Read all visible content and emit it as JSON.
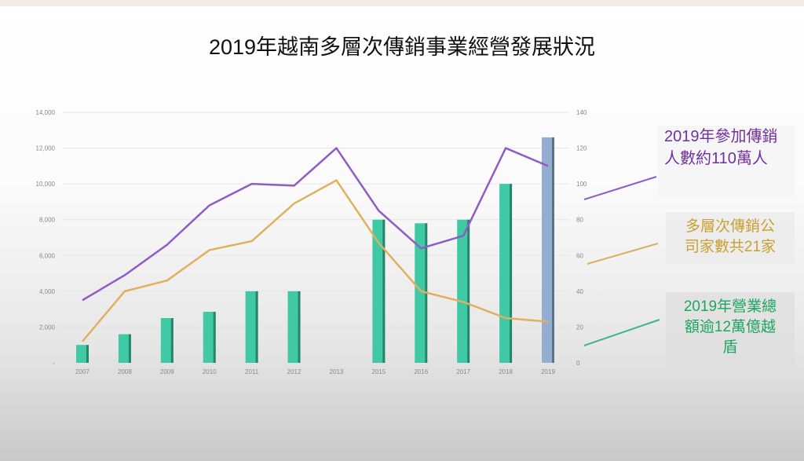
{
  "title": "2019年越南多層次傳銷事業經營發展狀況",
  "chart_data": {
    "type": "bar+line",
    "title": "2019年越南多層次傳銷事業經營發展狀況",
    "categories": [
      "2007",
      "2008",
      "2009",
      "2010",
      "2011",
      "2012",
      "2013",
      "2015",
      "2016",
      "2017",
      "2018",
      "2019"
    ],
    "left_axis": {
      "range": [
        0,
        14000
      ],
      "ticks": [
        "-",
        "2,000",
        "4,000",
        "6,000",
        "8,000",
        "10,000",
        "12,000",
        "14,000"
      ]
    },
    "right_axis": {
      "range": [
        0,
        140
      ],
      "ticks": [
        "0",
        "20",
        "40",
        "60",
        "80",
        "100",
        "120",
        "140"
      ]
    },
    "grid": true,
    "series": [
      {
        "kind": "bar",
        "axis": "left",
        "color": "#3fc9a4",
        "highlight_last_color": "#93aed0",
        "values": [
          1000,
          1600,
          2500,
          2850,
          4000,
          4000,
          null,
          8000,
          7800,
          8000,
          10000,
          12600
        ]
      },
      {
        "kind": "line",
        "axis": "left",
        "color": "#8e5cc7",
        "values": [
          3500,
          4900,
          6600,
          8800,
          10000,
          9900,
          12000,
          8500,
          6400,
          7100,
          12000,
          11000
        ]
      },
      {
        "kind": "line",
        "axis": "left",
        "color": "#e0b060",
        "values": [
          1200,
          4000,
          4600,
          6300,
          6800,
          8900,
          10200,
          6700,
          4000,
          3400,
          2500,
          2300
        ]
      }
    ],
    "annotations": [
      {
        "text": "2019年參加傳銷人數約110萬人",
        "lines": [
          "2019年參加傳",
          "銷人數約110萬",
          "人"
        ],
        "color": "#7030a0"
      },
      {
        "text": "多層次傳銷公司家數共21家",
        "lines": [
          "多層次傳銷公",
          "司家數共21家"
        ],
        "color": "#c9a032"
      },
      {
        "text": "2019年營業總額逾12萬億越盾",
        "lines": [
          "2019年營業總",
          "額逾12萬億越",
          "盾"
        ],
        "color": "#1fa560"
      }
    ]
  }
}
